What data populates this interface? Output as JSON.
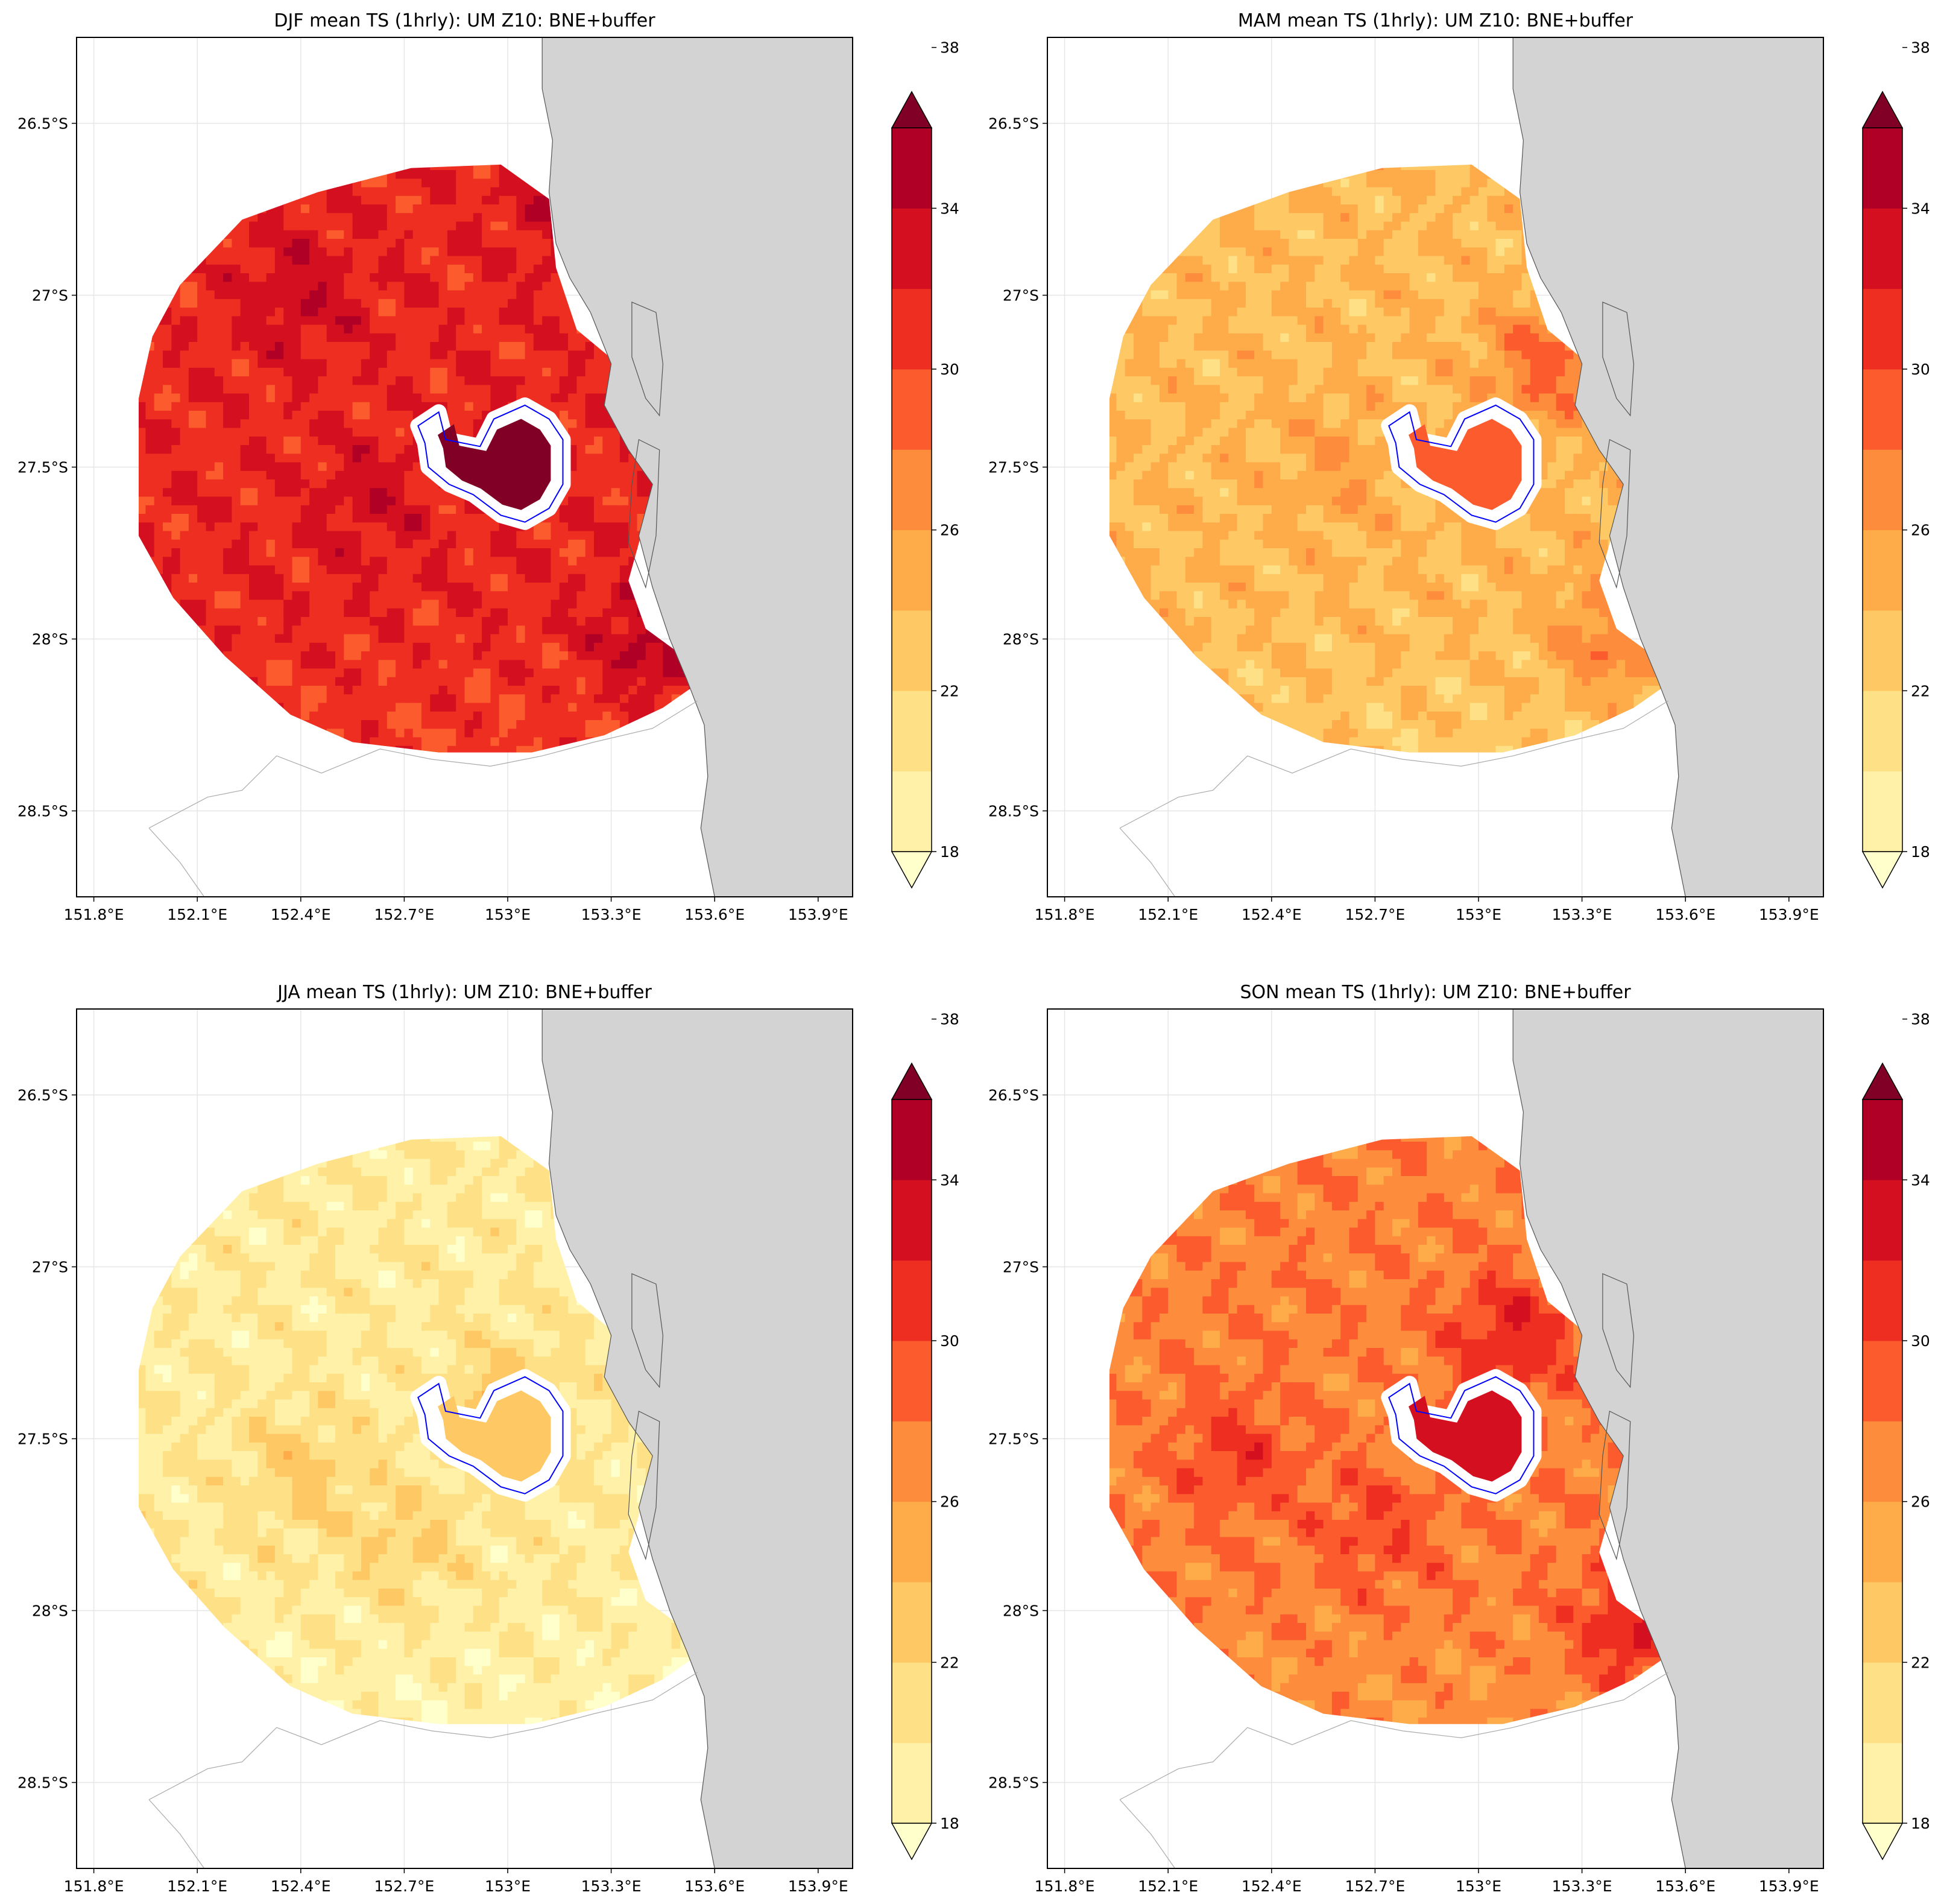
{
  "figure": {
    "panels": [
      {
        "id": "djf",
        "title": "DJF mean TS (1hrly): UM Z10: BNE+buffer",
        "level": 0.7,
        "center_level": 0.98,
        "hotspots": [
          {
            "lon": 152.4,
            "lat": -27.0,
            "level": 0.8
          },
          {
            "lon": 152.6,
            "lat": -27.6,
            "level": 0.78
          },
          {
            "lon": 153.45,
            "lat": -28.0,
            "level": 0.88
          },
          {
            "lon": 153.2,
            "lat": -26.75,
            "level": 0.82
          }
        ]
      },
      {
        "id": "mam",
        "title": "MAM mean TS (1hrly): UM Z10: BNE+buffer",
        "level": 0.36,
        "center_level": 0.62,
        "hotspots": [
          {
            "lon": 152.6,
            "lat": -27.5,
            "level": 0.45
          },
          {
            "lon": 153.4,
            "lat": -28.0,
            "level": 0.55
          },
          {
            "lon": 153.2,
            "lat": -27.2,
            "level": 0.58
          }
        ]
      },
      {
        "id": "jja",
        "title": "JJA mean TS (1hrly): UM Z10: BNE+buffer",
        "level": 0.17,
        "center_level": 0.36,
        "hotspots": [
          {
            "lon": 152.4,
            "lat": -27.6,
            "level": 0.3
          },
          {
            "lon": 152.7,
            "lat": -27.8,
            "level": 0.28
          },
          {
            "lon": 153.0,
            "lat": -27.4,
            "level": 0.33
          }
        ]
      },
      {
        "id": "son",
        "title": "SON mean TS (1hrly): UM Z10: BNE+buffer",
        "level": 0.52,
        "center_level": 0.8,
        "hotspots": [
          {
            "lon": 152.3,
            "lat": -27.55,
            "level": 0.66
          },
          {
            "lon": 152.7,
            "lat": -27.75,
            "level": 0.64
          },
          {
            "lon": 153.45,
            "lat": -28.05,
            "level": 0.76
          },
          {
            "lon": 153.1,
            "lat": -27.2,
            "level": 0.72
          }
        ]
      }
    ],
    "map_extent": {
      "lon_min": 151.75,
      "lon_max": 154.0,
      "lat_min": -28.75,
      "lat_max": -26.25
    },
    "x_ticks": [
      {
        "value": 151.8,
        "label": "151.8°E"
      },
      {
        "value": 152.1,
        "label": "152.1°E"
      },
      {
        "value": 152.4,
        "label": "152.4°E"
      },
      {
        "value": 152.7,
        "label": "152.7°E"
      },
      {
        "value": 153.0,
        "label": "153°E"
      },
      {
        "value": 153.3,
        "label": "153.3°E"
      },
      {
        "value": 153.6,
        "label": "153.6°E"
      },
      {
        "value": 153.9,
        "label": "153.9°E"
      }
    ],
    "y_ticks": [
      {
        "value": -26.5,
        "label": "26.5°S"
      },
      {
        "value": -27.0,
        "label": "27°S"
      },
      {
        "value": -27.5,
        "label": "27.5°S"
      },
      {
        "value": -28.0,
        "label": "28°S"
      },
      {
        "value": -28.5,
        "label": "28.5°S"
      }
    ],
    "colorbar": {
      "ticks": [
        "18",
        "22",
        "26",
        "30",
        "34",
        "38"
      ],
      "colors": [
        "#ffffcc",
        "#fff1a8",
        "#fee187",
        "#fec965",
        "#feab4a",
        "#fd8d3c",
        "#fc5b2e",
        "#ed2e21",
        "#d41020",
        "#b00026",
        "#800026"
      ],
      "extend": "both"
    },
    "colors": {
      "ocean": "#d3d3d3",
      "boundary": "#0000ff",
      "coast": "#555555",
      "grid": "#e6e6e6"
    }
  }
}
